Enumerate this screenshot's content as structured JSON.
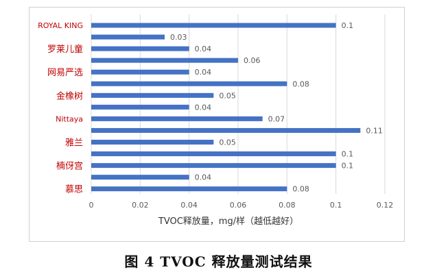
{
  "chart_data": {
    "type": "bar",
    "orientation": "horizontal",
    "xlabel": "TVOC释放量，mg/样（越低越好）",
    "xlim": [
      0,
      0.12
    ],
    "xticks": [
      "0",
      "0.02",
      "0.04",
      "0.06",
      "0.08",
      "0.1",
      "0.12"
    ],
    "grid": "vertical",
    "categories": [
      "ROYAL KING",
      "",
      "罗莱儿童",
      "",
      "网易严选",
      "",
      "金橡树",
      "",
      "Nittaya",
      "",
      "雅兰",
      "",
      "楠伢宫",
      "",
      "慕思"
    ],
    "values": [
      0.1,
      0.03,
      0.04,
      0.06,
      0.04,
      0.08,
      0.05,
      0.04,
      0.07,
      0.11,
      0.05,
      0.1,
      0.1,
      0.04,
      0.08
    ],
    "value_labels": [
      "0.1",
      "0.03",
      "0.04",
      "0.06",
      "0.04",
      "0.08",
      "0.05",
      "0.04",
      "0.07",
      "0.11",
      "0.05",
      "0.1",
      "0.1",
      "0.04",
      "0.08"
    ],
    "colors": {
      "bar": "#4472C4",
      "category_label": "#C00000",
      "tick_label": "#595959",
      "grid": "#D9D9D9"
    }
  },
  "caption": "图 4 TVOC 释放量测试结果"
}
